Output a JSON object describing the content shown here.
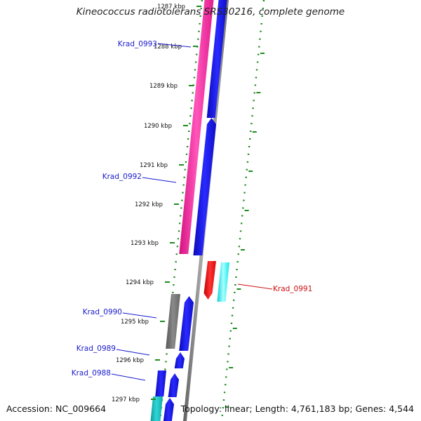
{
  "title": "Kineococcus radiotolerans SRS30216, complete genome",
  "footer": {
    "accession": "Accession: NC_009664",
    "summary": "Topology: linear; Length: 4,761,183 bp; Genes: 4,544"
  },
  "colors": {
    "tick": "#1f8a1f",
    "backbone": "#8c8c8c",
    "gene_label_blue": "#1a1acc",
    "gene_label_red": "#cc1111",
    "magenta": "#ff2ea6",
    "blue": "#1414e6",
    "gray": "#707070",
    "red": "#ee1111",
    "cyan": "#19f0f0",
    "teal": "#15b5b5"
  },
  "ticks": [
    "1287 kbp",
    "1288 kbp",
    "1289 kbp",
    "1290 kbp",
    "1291 kbp",
    "1292 kbp",
    "1293 kbp",
    "1294 kbp",
    "1295 kbp",
    "1296 kbp",
    "1297 kbp"
  ],
  "gene_labels": [
    {
      "text": "Krad_0993",
      "color": "blue"
    },
    {
      "text": "Krad_0992",
      "color": "blue"
    },
    {
      "text": "Krad_0991",
      "color": "red"
    },
    {
      "text": "Krad_0990",
      "color": "blue"
    },
    {
      "text": "Krad_0989",
      "color": "blue"
    },
    {
      "text": "Krad_0988",
      "color": "blue"
    }
  ]
}
